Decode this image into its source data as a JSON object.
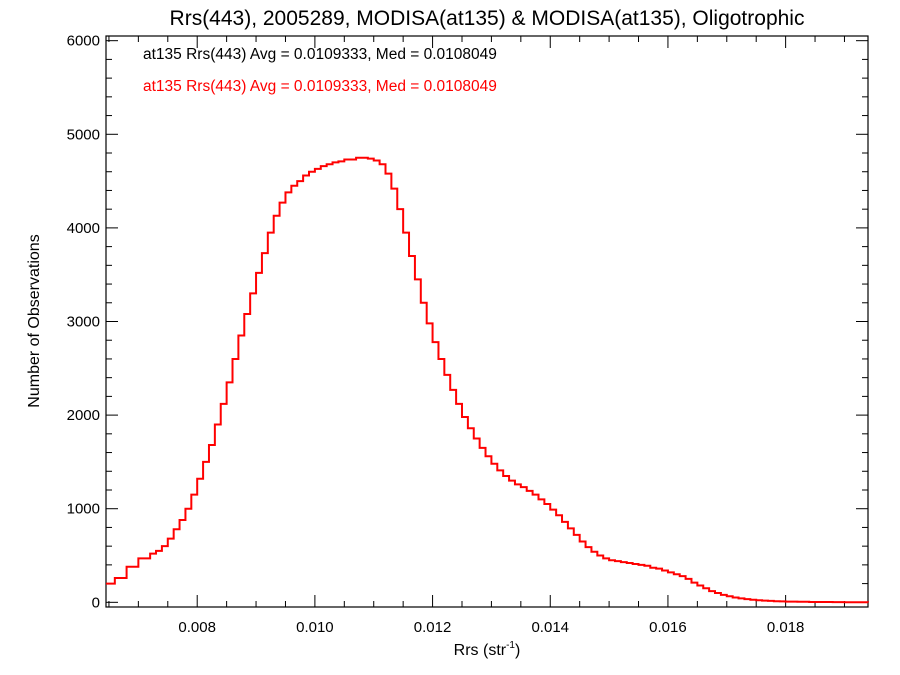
{
  "chart_data": {
    "type": "line",
    "title": "Rrs(443), 2005289, MODISA(at135) & MODISA(at135), Oligotrophic",
    "xlabel": "Rrs (str",
    "xlabel_sup": "-1",
    "xlabel_end": ")",
    "ylabel": "Number of Observations",
    "xlim": [
      0.00645,
      0.0194
    ],
    "ylim": [
      -50,
      6050
    ],
    "x_ticks": [
      {
        "value": 0.008,
        "label": "0.008"
      },
      {
        "value": 0.01,
        "label": "0.010"
      },
      {
        "value": 0.012,
        "label": "0.012"
      },
      {
        "value": 0.014,
        "label": "0.014"
      },
      {
        "value": 0.016,
        "label": "0.016"
      },
      {
        "value": 0.018,
        "label": "0.018"
      }
    ],
    "y_ticks": [
      {
        "value": 0,
        "label": "0"
      },
      {
        "value": 1000,
        "label": "1000"
      },
      {
        "value": 2000,
        "label": "2000"
      },
      {
        "value": 3000,
        "label": "3000"
      },
      {
        "value": 4000,
        "label": "4000"
      },
      {
        "value": 5000,
        "label": "5000"
      },
      {
        "value": 6000,
        "label": "6000"
      }
    ],
    "annotations": [
      {
        "text": "at135 Rrs(443) Avg = 0.0109333, Med = 0.0108049",
        "color": "#000000"
      },
      {
        "text": "at135 Rrs(443) Avg = 0.0109333, Med = 0.0108049",
        "color": "#ff0000"
      }
    ],
    "series": [
      {
        "color": "#ff0000",
        "step": true,
        "points": [
          [
            0.00645,
            200
          ],
          [
            0.0066,
            260
          ],
          [
            0.0068,
            380
          ],
          [
            0.007,
            470
          ],
          [
            0.0072,
            520
          ],
          [
            0.0073,
            550
          ],
          [
            0.0074,
            600
          ],
          [
            0.0075,
            680
          ],
          [
            0.0076,
            780
          ],
          [
            0.0077,
            880
          ],
          [
            0.0078,
            1000
          ],
          [
            0.0079,
            1150
          ],
          [
            0.008,
            1320
          ],
          [
            0.0081,
            1500
          ],
          [
            0.0082,
            1680
          ],
          [
            0.0083,
            1900
          ],
          [
            0.0084,
            2120
          ],
          [
            0.0085,
            2350
          ],
          [
            0.0086,
            2600
          ],
          [
            0.0087,
            2850
          ],
          [
            0.0088,
            3080
          ],
          [
            0.0089,
            3300
          ],
          [
            0.009,
            3520
          ],
          [
            0.0091,
            3730
          ],
          [
            0.0092,
            3950
          ],
          [
            0.0093,
            4130
          ],
          [
            0.0094,
            4270
          ],
          [
            0.0095,
            4380
          ],
          [
            0.0096,
            4450
          ],
          [
            0.0097,
            4500
          ],
          [
            0.0098,
            4560
          ],
          [
            0.0099,
            4600
          ],
          [
            0.01,
            4630
          ],
          [
            0.0101,
            4660
          ],
          [
            0.0102,
            4680
          ],
          [
            0.0103,
            4700
          ],
          [
            0.0104,
            4710
          ],
          [
            0.0105,
            4730
          ],
          [
            0.0106,
            4730
          ],
          [
            0.0107,
            4750
          ],
          [
            0.0108,
            4750
          ],
          [
            0.0109,
            4740
          ],
          [
            0.011,
            4720
          ],
          [
            0.0111,
            4680
          ],
          [
            0.0112,
            4580
          ],
          [
            0.0113,
            4420
          ],
          [
            0.0114,
            4200
          ],
          [
            0.0115,
            3950
          ],
          [
            0.0116,
            3700
          ],
          [
            0.0117,
            3450
          ],
          [
            0.0118,
            3200
          ],
          [
            0.0119,
            2980
          ],
          [
            0.012,
            2780
          ],
          [
            0.0121,
            2600
          ],
          [
            0.0122,
            2430
          ],
          [
            0.0123,
            2270
          ],
          [
            0.0124,
            2120
          ],
          [
            0.0125,
            1980
          ],
          [
            0.0126,
            1860
          ],
          [
            0.0127,
            1750
          ],
          [
            0.0128,
            1650
          ],
          [
            0.0129,
            1560
          ],
          [
            0.013,
            1480
          ],
          [
            0.0131,
            1410
          ],
          [
            0.0132,
            1350
          ],
          [
            0.0133,
            1300
          ],
          [
            0.0134,
            1260
          ],
          [
            0.0135,
            1230
          ],
          [
            0.0136,
            1190
          ],
          [
            0.0137,
            1150
          ],
          [
            0.0138,
            1100
          ],
          [
            0.0139,
            1050
          ],
          [
            0.014,
            990
          ],
          [
            0.0141,
            930
          ],
          [
            0.0142,
            860
          ],
          [
            0.0143,
            790
          ],
          [
            0.0144,
            720
          ],
          [
            0.0145,
            650
          ],
          [
            0.0146,
            590
          ],
          [
            0.0147,
            540
          ],
          [
            0.0148,
            500
          ],
          [
            0.0149,
            470
          ],
          [
            0.015,
            450
          ],
          [
            0.0151,
            440
          ],
          [
            0.0152,
            430
          ],
          [
            0.0153,
            420
          ],
          [
            0.0154,
            410
          ],
          [
            0.0155,
            400
          ],
          [
            0.0156,
            390
          ],
          [
            0.0157,
            370
          ],
          [
            0.0158,
            360
          ],
          [
            0.0159,
            340
          ],
          [
            0.016,
            320
          ],
          [
            0.0161,
            300
          ],
          [
            0.0162,
            280
          ],
          [
            0.0163,
            250
          ],
          [
            0.0164,
            210
          ],
          [
            0.0165,
            180
          ],
          [
            0.0166,
            150
          ],
          [
            0.0167,
            120
          ],
          [
            0.0168,
            100
          ],
          [
            0.0169,
            80
          ],
          [
            0.017,
            65
          ],
          [
            0.0171,
            52
          ],
          [
            0.0172,
            42
          ],
          [
            0.0173,
            34
          ],
          [
            0.0174,
            27
          ],
          [
            0.0175,
            22
          ],
          [
            0.0176,
            18
          ],
          [
            0.0177,
            15
          ],
          [
            0.0178,
            12
          ],
          [
            0.0179,
            10
          ],
          [
            0.018,
            8
          ],
          [
            0.0182,
            6
          ],
          [
            0.0184,
            4
          ],
          [
            0.0186,
            3
          ],
          [
            0.0188,
            2
          ],
          [
            0.019,
            1
          ],
          [
            0.0192,
            1
          ],
          [
            0.0194,
            0
          ]
        ]
      }
    ]
  }
}
